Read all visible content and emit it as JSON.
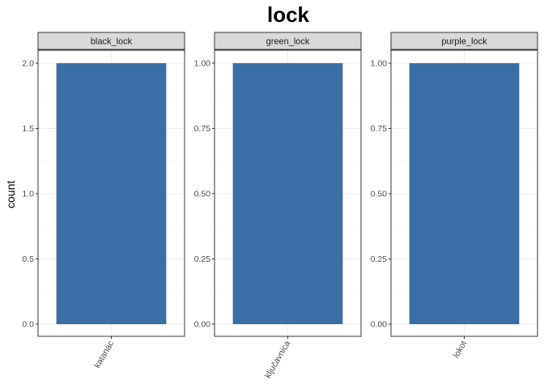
{
  "chart_data": {
    "type": "bar",
    "title": "lock",
    "xlabel": "",
    "ylabel": "count",
    "bar_color": "#3A6EA5",
    "strip_color": "#D9D9D9",
    "grid": true,
    "facets": [
      {
        "name": "black_lock",
        "categories": [
          "katanac"
        ],
        "values": [
          2
        ],
        "ylim": [
          0,
          2
        ],
        "yticks": [
          "0.0",
          "0.5",
          "1.0",
          "1.5",
          "2.0"
        ]
      },
      {
        "name": "green_lock",
        "categories": [
          "ključavnica"
        ],
        "values": [
          1
        ],
        "ylim": [
          0,
          1
        ],
        "yticks": [
          "0.00",
          "0.25",
          "0.50",
          "0.75",
          "1.00"
        ]
      },
      {
        "name": "purple_lock",
        "categories": [
          "lokot"
        ],
        "values": [
          1
        ],
        "ylim": [
          0,
          1
        ],
        "yticks": [
          "0.00",
          "0.25",
          "0.50",
          "0.75",
          "1.00"
        ]
      }
    ]
  }
}
